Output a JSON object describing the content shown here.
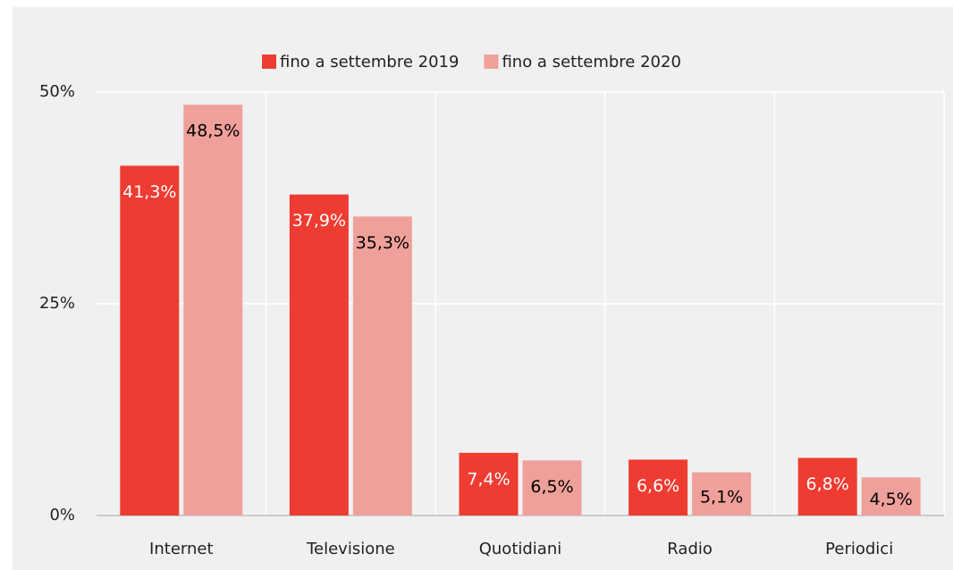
{
  "chart_data": {
    "type": "bar",
    "categories": [
      "Internet",
      "Televisione",
      "Quotidiani",
      "Radio",
      "Periodici"
    ],
    "series": [
      {
        "name": "fino a settembre 2019",
        "color": "#ee3c32",
        "values": [
          41.3,
          37.9,
          7.4,
          6.6,
          6.8
        ],
        "value_labels": [
          "41,3%",
          "37,9%",
          "7,4%",
          "6,6%",
          "6,8%"
        ]
      },
      {
        "name": "fino a settembre 2020",
        "color": "#f0a09a",
        "values": [
          48.5,
          35.3,
          6.5,
          5.1,
          4.5
        ],
        "value_labels": [
          "48,5%",
          "35,3%",
          "6,5%",
          "5,1%",
          "4,5%"
        ]
      }
    ],
    "ylim": [
      0,
      50
    ],
    "yticks": [
      {
        "value": 0,
        "label": "0%"
      },
      {
        "value": 25,
        "label": "25%"
      },
      {
        "value": 50,
        "label": "50%"
      }
    ],
    "legend": "top"
  }
}
